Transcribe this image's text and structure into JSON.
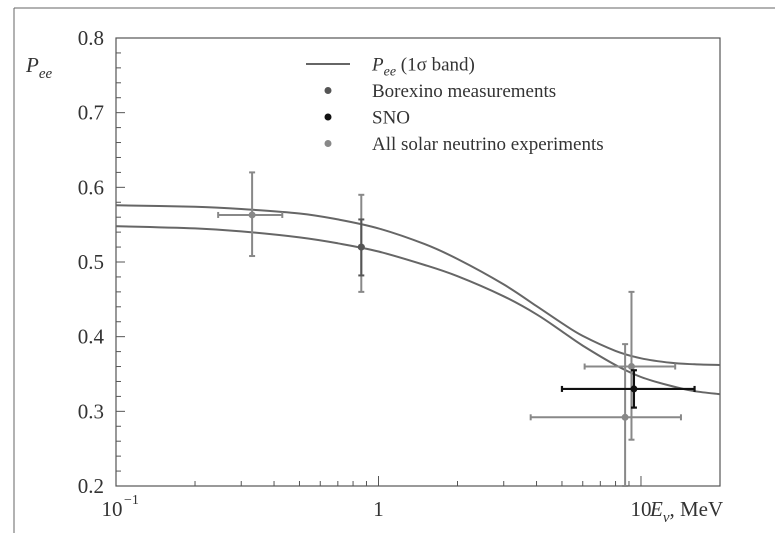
{
  "chart_data": {
    "type": "scatter",
    "x_scale": "log",
    "xlim": [
      0.1,
      20
    ],
    "ylim": [
      0.2,
      0.8
    ],
    "ylabel": "P_ee",
    "xlabel": "E_ν, MeV",
    "grid": false,
    "legend_position": "top-center",
    "x_ticks": [
      {
        "value": 0.1,
        "label": "10",
        "exp": "−1"
      },
      {
        "value": 1,
        "label": "1",
        "exp": ""
      },
      {
        "value": 10,
        "label": "10",
        "exp": ""
      }
    ],
    "y_ticks": [
      {
        "value": 0.2,
        "label": "0.2"
      },
      {
        "value": 0.3,
        "label": "0.3"
      },
      {
        "value": 0.4,
        "label": "0.4"
      },
      {
        "value": 0.5,
        "label": "0.5"
      },
      {
        "value": 0.6,
        "label": "0.6"
      },
      {
        "value": 0.7,
        "label": "0.7"
      },
      {
        "value": 0.8,
        "label": "0.8"
      }
    ],
    "legend": [
      {
        "key": "band",
        "label": "P_ee (1σ band)",
        "marker": "line",
        "color": "#666666"
      },
      {
        "key": "borexino",
        "label": "Borexino measurements",
        "marker": "dot",
        "color": "#555555"
      },
      {
        "key": "sno",
        "label": "SNO",
        "marker": "dot",
        "color": "#111111"
      },
      {
        "key": "all",
        "label": "All solar neutrino experiments",
        "marker": "dot",
        "color": "#888888"
      }
    ],
    "band": {
      "upper": [
        [
          0.1,
          0.576
        ],
        [
          0.2,
          0.574
        ],
        [
          0.3,
          0.571
        ],
        [
          0.5,
          0.565
        ],
        [
          0.7,
          0.557
        ],
        [
          1.0,
          0.545
        ],
        [
          1.5,
          0.524
        ],
        [
          2.0,
          0.504
        ],
        [
          3.0,
          0.47
        ],
        [
          4.0,
          0.441
        ],
        [
          5.0,
          0.418
        ],
        [
          6.0,
          0.401
        ],
        [
          8.0,
          0.381
        ],
        [
          10.0,
          0.371
        ],
        [
          13.0,
          0.365
        ],
        [
          16.0,
          0.363
        ],
        [
          20.0,
          0.362
        ]
      ],
      "lower": [
        [
          0.1,
          0.548
        ],
        [
          0.2,
          0.545
        ],
        [
          0.3,
          0.541
        ],
        [
          0.5,
          0.533
        ],
        [
          0.7,
          0.525
        ],
        [
          1.0,
          0.514
        ],
        [
          1.5,
          0.496
        ],
        [
          2.0,
          0.481
        ],
        [
          3.0,
          0.454
        ],
        [
          4.0,
          0.43
        ],
        [
          5.0,
          0.407
        ],
        [
          6.0,
          0.388
        ],
        [
          8.0,
          0.362
        ],
        [
          10.0,
          0.346
        ],
        [
          13.0,
          0.334
        ],
        [
          16.0,
          0.327
        ],
        [
          20.0,
          0.323
        ]
      ]
    },
    "series": [
      {
        "key": "all",
        "color": "#888888",
        "points": [
          {
            "x": 0.33,
            "y": 0.563,
            "yerr": [
              0.508,
              0.62
            ],
            "xerr": [
              0.245,
              0.43
            ]
          },
          {
            "x": 0.86,
            "y": 0.52,
            "yerr": [
              0.46,
              0.59
            ],
            "xerr": null
          },
          {
            "x": 9.2,
            "y": 0.36,
            "yerr": [
              0.262,
              0.46
            ],
            "xerr": [
              6.1,
              13.5
            ]
          },
          {
            "x": 8.7,
            "y": 0.292,
            "yerr": [
              0.2,
              0.39
            ],
            "xerr": [
              3.8,
              14.2
            ]
          }
        ]
      },
      {
        "key": "borexino",
        "color": "#555555",
        "points": [
          {
            "x": 0.86,
            "y": 0.52,
            "yerr": [
              0.482,
              0.557
            ],
            "xerr": null
          }
        ]
      },
      {
        "key": "sno",
        "color": "#111111",
        "points": [
          {
            "x": 9.4,
            "y": 0.33,
            "yerr": [
              0.305,
              0.355
            ],
            "xerr": [
              5.0,
              16.0
            ]
          }
        ]
      }
    ]
  }
}
